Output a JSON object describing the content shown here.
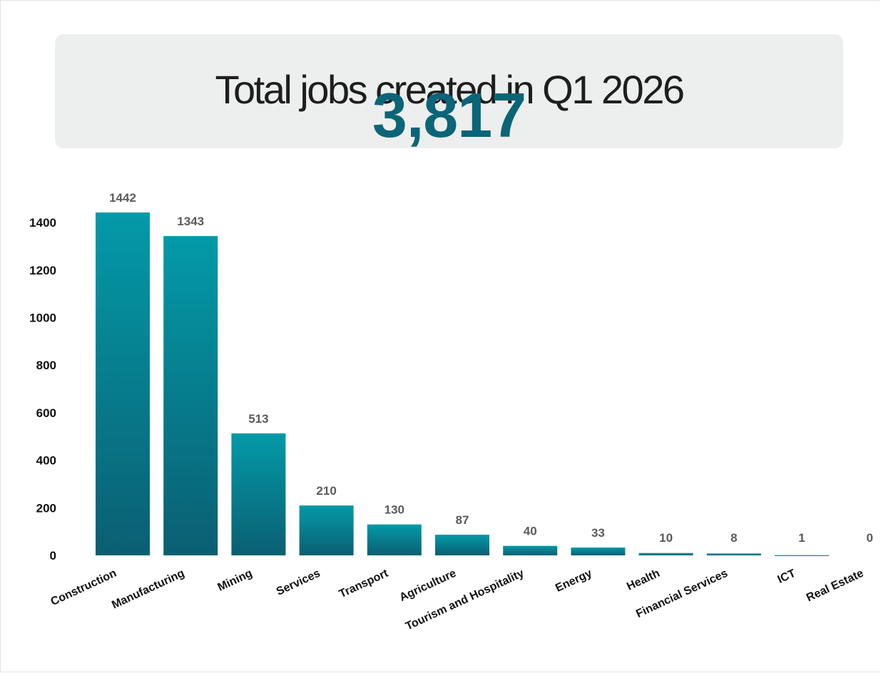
{
  "header": {
    "headline": "Total jobs created in Q1 2026",
    "total": "3,817"
  },
  "colors": {
    "bar_top": "#039aa8",
    "bar_bottom": "#0a5f72",
    "accent": "#0b6578",
    "panel": "#edeeee"
  },
  "chart_data": {
    "type": "bar",
    "categories": [
      "Construction",
      "Manufacturing",
      "Mining",
      "Services",
      "Transport",
      "Agriculture",
      "Tourism and Hospitality",
      "Energy",
      "Health",
      "Financial Services",
      "ICT",
      "Real Estate"
    ],
    "values": [
      1442,
      1343,
      513,
      210,
      130,
      87,
      40,
      33,
      10,
      8,
      1,
      0
    ],
    "value_labels": [
      "1442",
      "1343",
      "513",
      "210",
      "130",
      "87",
      "40",
      "33",
      "10",
      "8",
      "1",
      "0"
    ],
    "yticks": [
      "0",
      "200",
      "400",
      "600",
      "800",
      "1000",
      "1200",
      "1400"
    ],
    "ylim": [
      0,
      1400
    ],
    "grid": false,
    "legend": "none"
  }
}
